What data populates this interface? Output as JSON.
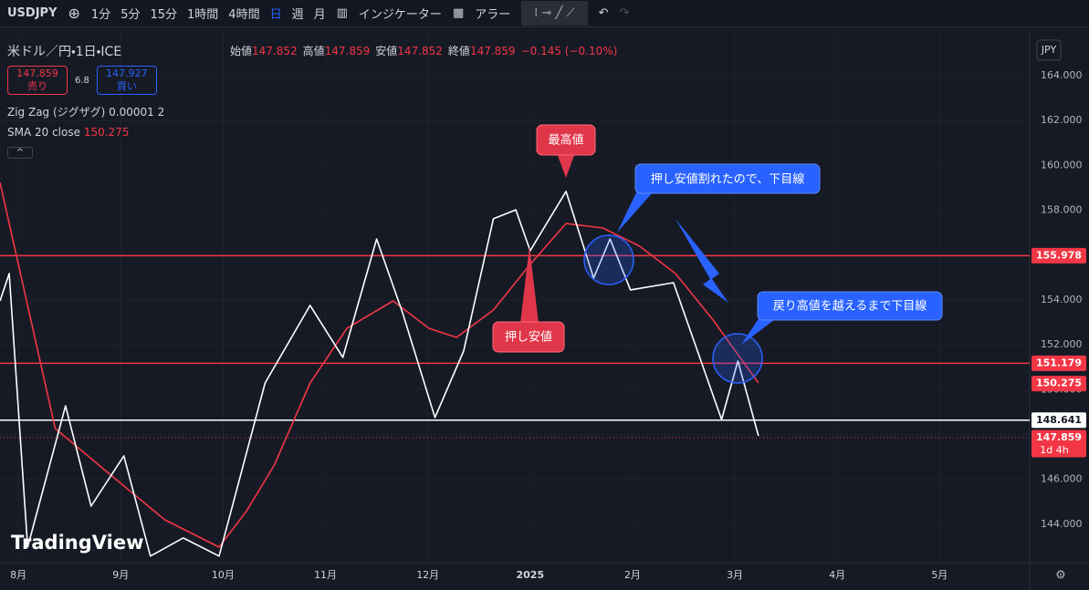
{
  "toolbar": {
    "symbol": "USDJPY",
    "intervals": [
      "1分",
      "5分",
      "15分",
      "1時間",
      "4時間",
      "日",
      "週",
      "月"
    ],
    "indicators": "インジケーター",
    "alerts": "アラー"
  },
  "legend": {
    "instrument": "米ドル／円・1日・ICE",
    "ohlc": [
      {
        "label": "始値",
        "value": "147.852"
      },
      {
        "label": "高値",
        "value": "147.859"
      },
      {
        "label": "安値",
        "value": "147.852"
      },
      {
        "label": "終値",
        "value": "147.859"
      }
    ],
    "change": "−0.145 (−0.10%)",
    "sell": {
      "price": "147.859",
      "label": "売り"
    },
    "spread": "6.8",
    "buy": {
      "price": "147.927",
      "label": "買い"
    }
  },
  "currency": "JPY",
  "logo": "TradingView",
  "chart_data": {
    "type": "line",
    "xlim": [
      -0.18,
      9.88
    ],
    "xticks": [
      {
        "value": 0,
        "label": "8月"
      },
      {
        "value": 1,
        "label": "9月"
      },
      {
        "value": 2,
        "label": "10月"
      },
      {
        "value": 3,
        "label": "11月"
      },
      {
        "value": 4,
        "label": "12月"
      },
      {
        "value": 5,
        "label": "2025"
      },
      {
        "value": 6,
        "label": "2月"
      },
      {
        "value": 7,
        "label": "3月"
      },
      {
        "value": 8,
        "label": "4月"
      },
      {
        "value": 9,
        "label": "5月"
      }
    ],
    "ylim": [
      142.37,
      165.75
    ],
    "yticks": [
      {
        "value": 144,
        "label": "144.000"
      },
      {
        "value": 146,
        "label": "146.000"
      },
      {
        "value": 148,
        "label": "148.000"
      },
      {
        "value": 150,
        "label": "150.000"
      },
      {
        "value": 152,
        "label": "152.000"
      },
      {
        "value": 154,
        "label": "154.000"
      },
      {
        "value": 156,
        "label": "156.000"
      },
      {
        "value": 158,
        "label": "158.000"
      },
      {
        "value": 160,
        "label": "160.000"
      },
      {
        "value": 162,
        "label": "162.000"
      },
      {
        "value": 164,
        "label": "164.000"
      }
    ],
    "series": [
      {
        "name": "Zig Zag (ジグザグ) 0.00001 2",
        "color": "#ffffff",
        "x": [
          -0.18,
          -0.09,
          0.09,
          0.46,
          0.71,
          1.03,
          1.29,
          1.61,
          1.96,
          2.41,
          2.85,
          3.17,
          3.5,
          3.75,
          4.07,
          4.35,
          4.64,
          4.86,
          5.0,
          5.35,
          5.62,
          5.78,
          5.98,
          6.4,
          6.87,
          7.03,
          7.23
        ],
        "values": [
          153.96,
          155.18,
          142.98,
          149.28,
          144.81,
          147.05,
          142.58,
          143.39,
          142.58,
          150.3,
          153.76,
          151.44,
          156.72,
          153.47,
          148.76,
          151.72,
          157.62,
          158.02,
          156.2,
          158.84,
          154.98,
          156.72,
          154.45,
          154.77,
          148.67,
          151.28,
          147.94
        ]
      },
      {
        "name": "SMA 20 close",
        "color": "#f23645",
        "last_value": 150.275,
        "x": [
          -0.18,
          0.36,
          0.89,
          1.43,
          1.96,
          2.23,
          2.5,
          2.85,
          3.21,
          3.66,
          4.01,
          4.28,
          4.64,
          5.0,
          5.35,
          5.71,
          6.07,
          6.42,
          6.78,
          7.23
        ],
        "values": [
          159.24,
          148.27,
          146.24,
          144.2,
          142.98,
          144.6,
          146.64,
          150.3,
          152.74,
          153.96,
          152.74,
          152.33,
          153.55,
          155.59,
          157.41,
          157.21,
          156.4,
          155.18,
          153.15,
          150.3
        ]
      }
    ],
    "horizontal_lines": [
      {
        "value": 155.978,
        "color": "#f23645"
      },
      {
        "value": 151.179,
        "color": "#f23645"
      },
      {
        "value": 148.641,
        "color": "#ffffff"
      }
    ],
    "price_line": {
      "value": 147.859,
      "countdown": "1d 4h",
      "color": "#f23645"
    },
    "annotations": [
      "最高値",
      "押し安値",
      "押し安値割れたので、下目線",
      "戻り高値を越えるまで下目線"
    ]
  }
}
